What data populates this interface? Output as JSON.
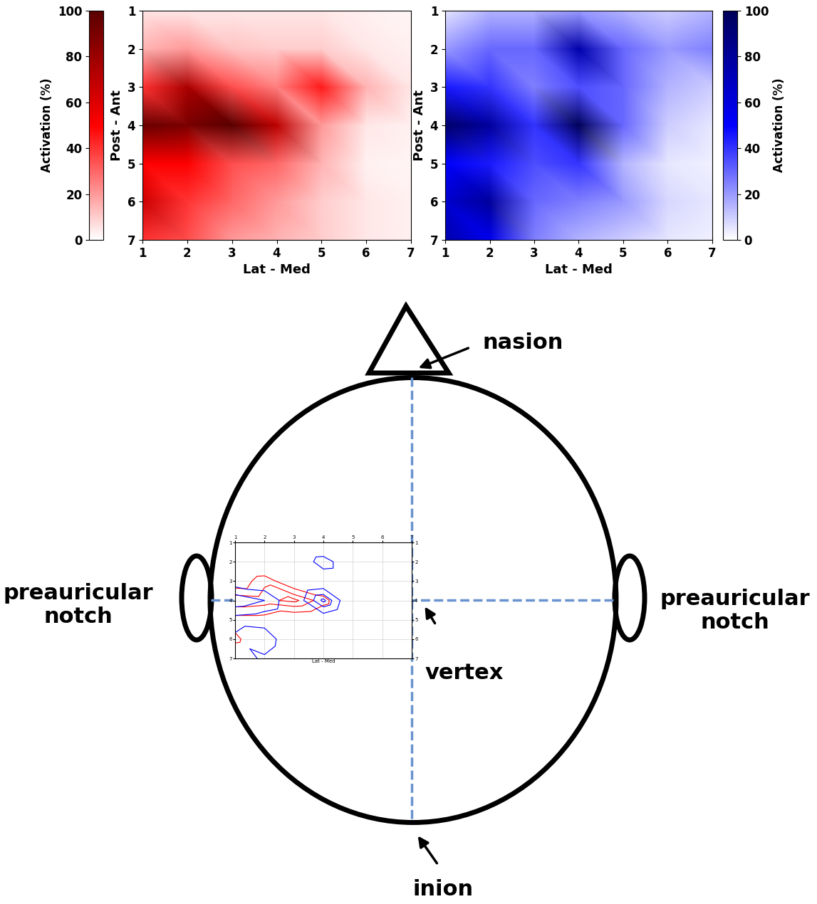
{
  "chart_data": [
    {
      "type": "heatmap",
      "color": "#ff0000",
      "x": [
        1,
        2,
        3,
        4,
        5,
        6,
        7
      ],
      "y": [
        1,
        2,
        3,
        4,
        5,
        6,
        7
      ],
      "cells": [
        [
          5,
          5,
          5,
          5,
          5,
          3,
          2
        ],
        [
          15,
          20,
          12,
          10,
          10,
          5,
          3
        ],
        [
          40,
          75,
          35,
          25,
          45,
          15,
          5
        ],
        [
          95,
          90,
          100,
          70,
          20,
          5,
          3
        ],
        [
          50,
          50,
          35,
          30,
          15,
          3,
          2
        ],
        [
          65,
          40,
          30,
          20,
          10,
          5,
          3
        ],
        [
          40,
          35,
          20,
          15,
          10,
          5,
          3
        ]
      ],
      "xlabel": "Lat - Med",
      "ylabel": "Post - Ant",
      "xlim": [
        1,
        7
      ],
      "ylim": [
        7,
        1
      ],
      "xticks": [
        1,
        2,
        3,
        4,
        5,
        6,
        7
      ],
      "yticks": [
        1,
        2,
        3,
        4,
        5,
        6,
        7
      ],
      "colorbar": {
        "label": "Activation (%)",
        "range": [
          0,
          100
        ],
        "ticks": [
          0,
          20,
          40,
          60,
          80,
          100
        ]
      }
    },
    {
      "type": "heatmap",
      "color": "#0000ff",
      "x": [
        1,
        2,
        3,
        4,
        5,
        6,
        7
      ],
      "y": [
        1,
        2,
        3,
        4,
        5,
        6,
        7
      ],
      "cells": [
        [
          5,
          15,
          15,
          20,
          15,
          10,
          15
        ],
        [
          20,
          30,
          30,
          75,
          30,
          20,
          25
        ],
        [
          45,
          40,
          25,
          35,
          30,
          15,
          10
        ],
        [
          95,
          80,
          40,
          100,
          30,
          10,
          5
        ],
        [
          50,
          45,
          35,
          40,
          15,
          5,
          3
        ],
        [
          65,
          80,
          30,
          25,
          20,
          8,
          5
        ],
        [
          75,
          55,
          25,
          15,
          10,
          5,
          3
        ]
      ],
      "xlabel": "Lat - Med",
      "ylabel": "Post - Ant",
      "xlim": [
        1,
        7
      ],
      "ylim": [
        7,
        1
      ],
      "xticks": [
        1,
        2,
        3,
        4,
        5,
        6,
        7
      ],
      "yticks": [
        1,
        2,
        3,
        4,
        5,
        6,
        7
      ],
      "colorbar": {
        "label": "Activation (%)",
        "range": [
          0,
          100
        ],
        "ticks": [
          0,
          20,
          40,
          60,
          80,
          100
        ]
      }
    }
  ],
  "diagram": {
    "nasion": "nasion",
    "preauricular_left": "preauricular\nnotch",
    "preauricular_right": "preauricular\nnotch",
    "vertex": "vertex",
    "inion": "inion",
    "inset": {
      "type": "contour",
      "xlabel": "Lat - Med",
      "xlim": [
        1,
        7
      ],
      "ylim": [
        7,
        1
      ],
      "xticks": [
        1,
        2,
        3,
        4,
        5,
        6,
        7
      ],
      "yticks": [
        1,
        2,
        3,
        4,
        5,
        6,
        7
      ],
      "levels": [
        60,
        80,
        95
      ]
    }
  }
}
